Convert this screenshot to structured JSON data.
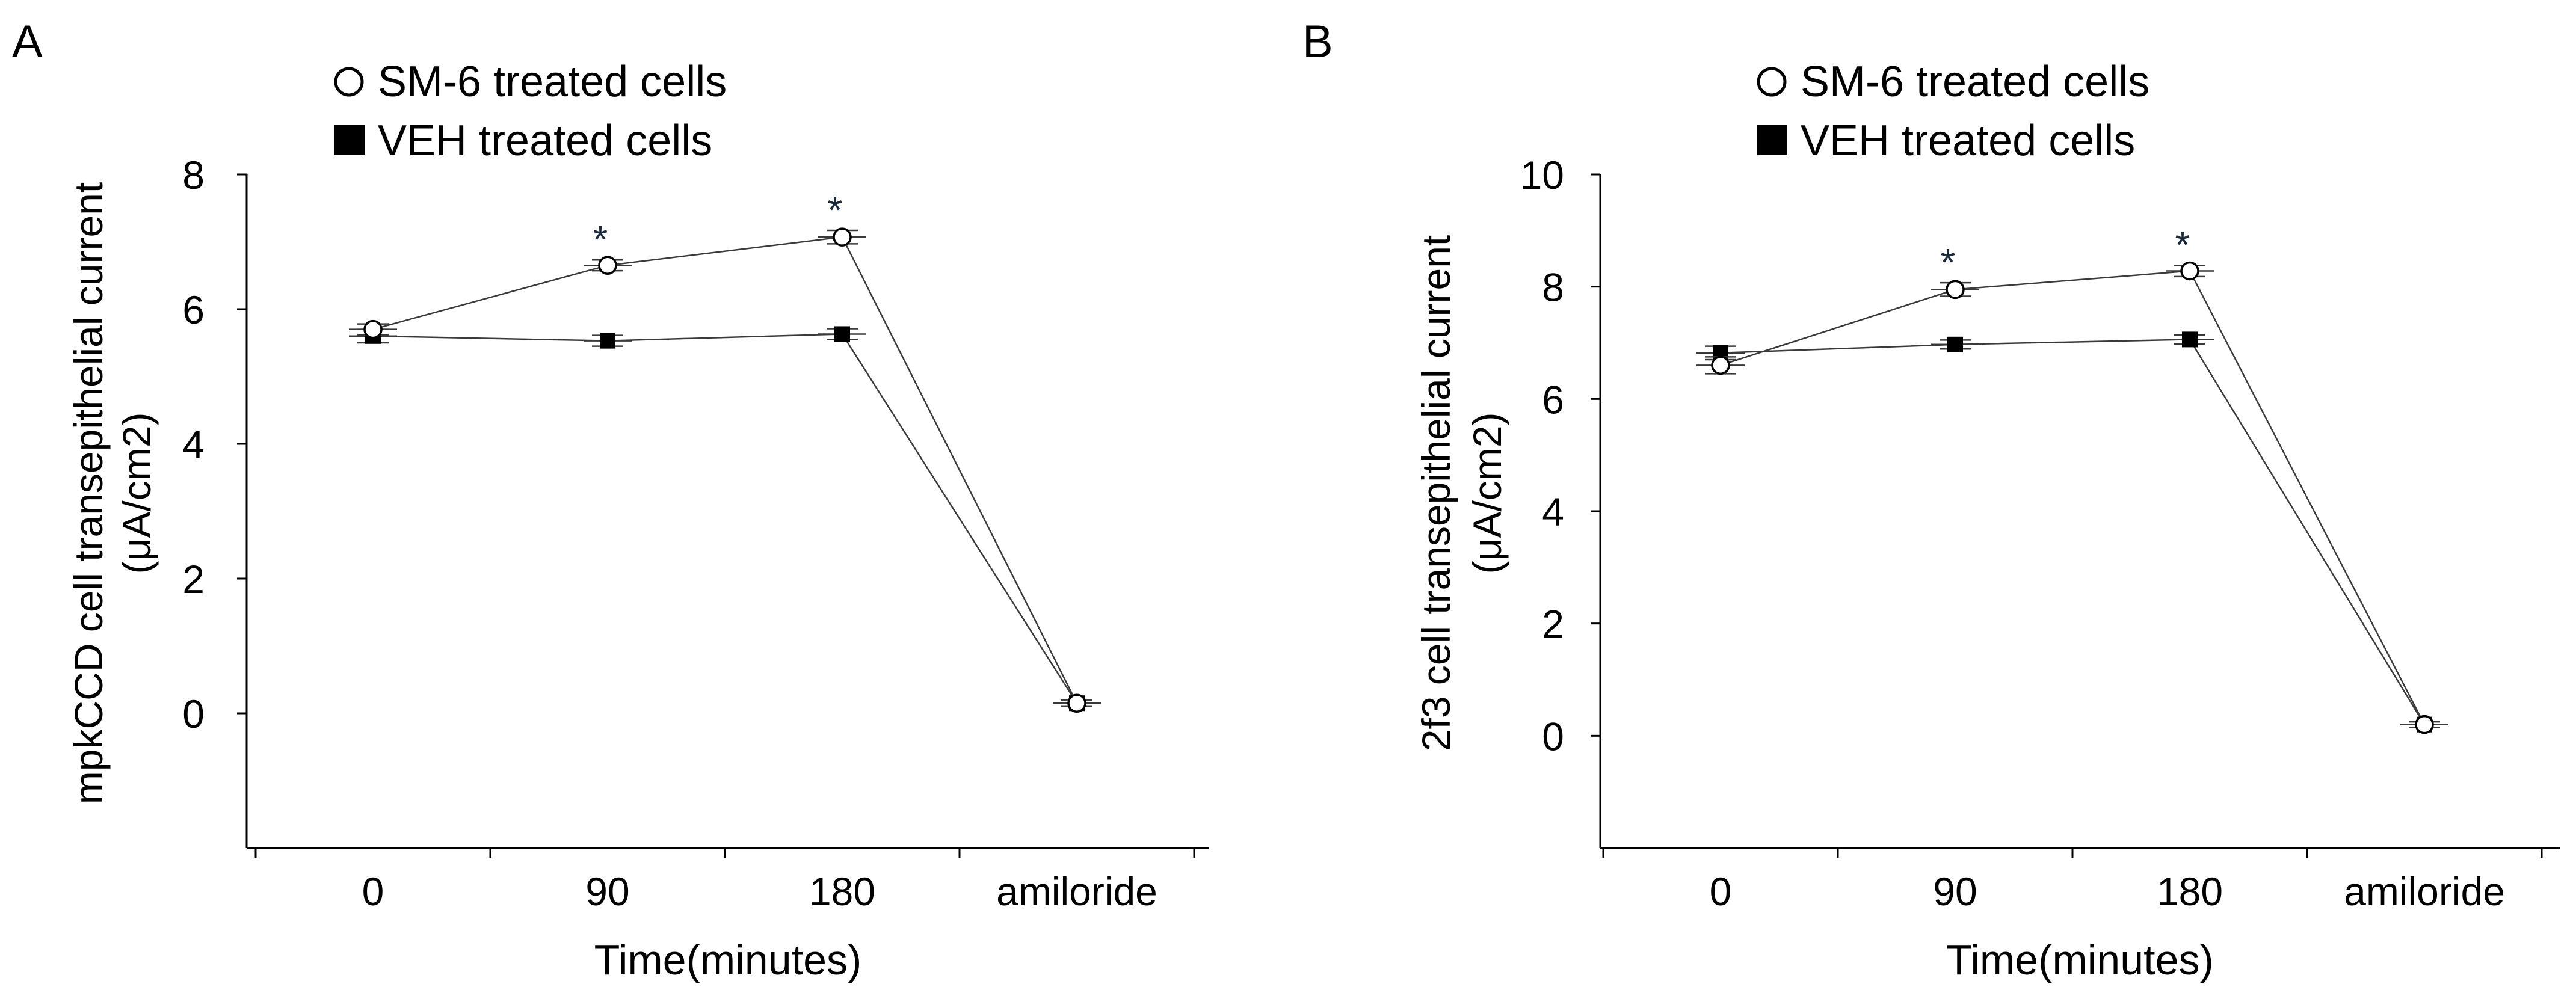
{
  "colors": {
    "axis": "#000000",
    "line": "#3a3a3a",
    "marker_open_fill": "#ffffff",
    "marker_filled": "#000000",
    "star": "#1a2a3a"
  },
  "chart_data": [
    {
      "type": "line",
      "panel_label": "A",
      "xlabel": "Time(minutes)",
      "ylabel_line1": "mpkCCD cell transepithelial current",
      "ylabel_line2": "(μA/cm2)",
      "categories": [
        "0",
        "90",
        "180",
        "amiloride"
      ],
      "ylim": [
        -2,
        8
      ],
      "yticks": [
        0,
        2,
        4,
        6,
        8
      ],
      "ytick_labels": [
        "0",
        "2",
        "4",
        "6",
        "8"
      ],
      "legend": [
        {
          "label": "SM-6 treated cells",
          "marker": "open-circle"
        },
        {
          "label": "VEH treated cells",
          "marker": "filled-square"
        }
      ],
      "series": [
        {
          "name": "SM-6 treated cells",
          "marker": "open-circle",
          "values": [
            5.7,
            6.65,
            7.07,
            0.15
          ],
          "errors": [
            0.08,
            0.08,
            0.1,
            0.05
          ]
        },
        {
          "name": "VEH treated cells",
          "marker": "filled-square",
          "values": [
            5.6,
            5.53,
            5.63,
            0.15
          ],
          "errors": [
            0.1,
            0.08,
            0.08,
            0.05
          ]
        }
      ],
      "significance": [
        {
          "category": "90",
          "label": "*"
        },
        {
          "category": "180",
          "label": "*"
        }
      ]
    },
    {
      "type": "line",
      "panel_label": "B",
      "xlabel": "Time(minutes)",
      "ylabel_line1": "2f3 cell transepithelial current",
      "ylabel_line2": "(μA/cm2)",
      "categories": [
        "0",
        "90",
        "180",
        "amiloride"
      ],
      "ylim": [
        -2,
        10
      ],
      "yticks": [
        0,
        2,
        4,
        6,
        8,
        10
      ],
      "ytick_labels": [
        "0",
        "2",
        "4",
        "6",
        "8",
        "10"
      ],
      "legend": [
        {
          "label": "SM-6 treated cells",
          "marker": "open-circle"
        },
        {
          "label": "VEH treated cells",
          "marker": "filled-square"
        }
      ],
      "series": [
        {
          "name": "SM-6 treated cells",
          "marker": "open-circle",
          "values": [
            6.6,
            7.95,
            8.28,
            0.2
          ],
          "errors": [
            0.15,
            0.12,
            0.1,
            0.05
          ]
        },
        {
          "name": "VEH treated cells",
          "marker": "filled-square",
          "values": [
            6.82,
            6.97,
            7.06,
            0.2
          ],
          "errors": [
            0.12,
            0.08,
            0.08,
            0.05
          ]
        }
      ],
      "significance": [
        {
          "category": "90",
          "label": "*"
        },
        {
          "category": "180",
          "label": "*"
        }
      ]
    }
  ]
}
